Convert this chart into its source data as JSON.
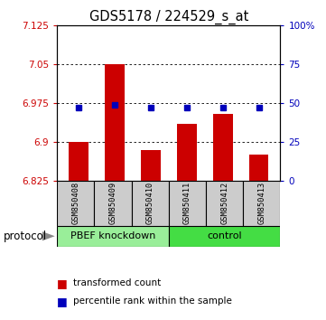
{
  "title": "GDS5178 / 224529_s_at",
  "samples": [
    "GSM850408",
    "GSM850409",
    "GSM850410",
    "GSM850411",
    "GSM850412",
    "GSM850413"
  ],
  "red_values": [
    6.9,
    7.05,
    6.885,
    6.935,
    6.955,
    6.875
  ],
  "blue_values": [
    6.967,
    6.972,
    6.967,
    6.967,
    6.967,
    6.967
  ],
  "ylim_left": [
    6.825,
    7.125
  ],
  "yticks_left": [
    6.825,
    6.9,
    6.975,
    7.05,
    7.125
  ],
  "yticks_right": [
    0,
    25,
    50,
    75,
    100
  ],
  "bar_color": "#CC0000",
  "dot_color": "#0000BB",
  "sample_bg_color": "#CCCCCC",
  "group1_color": "#99EE99",
  "group2_color": "#44DD44",
  "group1_label": "PBEF knockdown",
  "group2_label": "control",
  "protocol_label": "protocol",
  "legend_items": [
    {
      "color": "#CC0000",
      "label": "transformed count"
    },
    {
      "color": "#0000BB",
      "label": "percentile rank within the sample"
    }
  ]
}
